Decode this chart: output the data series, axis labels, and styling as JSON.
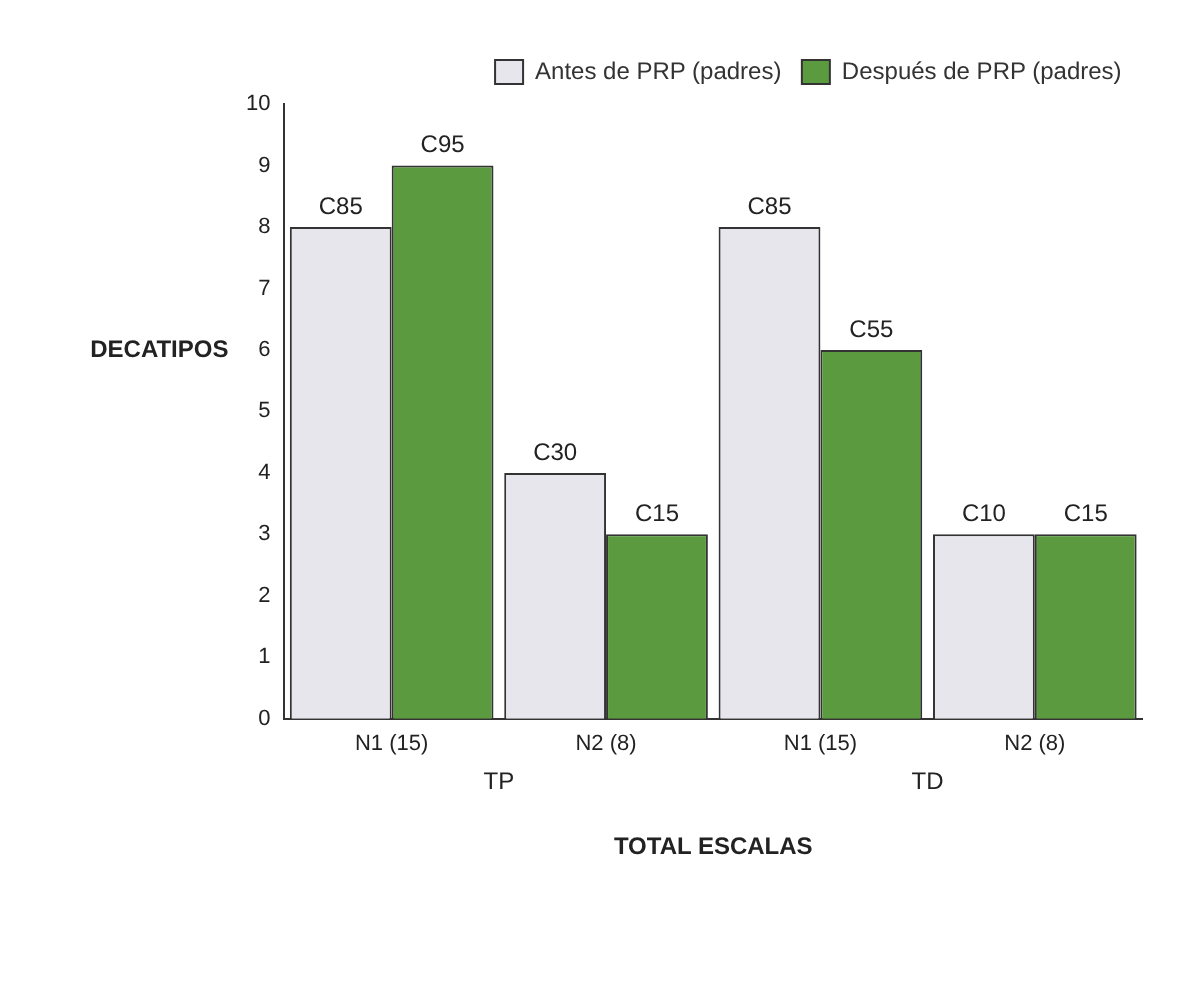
{
  "chart_data": {
    "type": "bar",
    "xlabel": "TOTAL ESCALAS",
    "ylabel": "DECATIPOS",
    "categories": [
      "N1 (15)",
      "N2 (8)",
      "N1 (15)",
      "N2 (8)"
    ],
    "series": [
      {
        "name": "Antes de PRP (padres)",
        "color": "#e6e6ec",
        "values": [
          8,
          4,
          8,
          3
        ],
        "value_labels": [
          "C85",
          "C30",
          "C85",
          "C10"
        ]
      },
      {
        "name": "Después de PRP (padres)",
        "color": "#5b9a3e",
        "values": [
          9,
          3,
          6,
          3
        ],
        "value_labels": [
          "C95",
          "C15",
          "C55",
          "C15"
        ]
      }
    ],
    "annotations": [
      "TP",
      "TD"
    ],
    "ylim": [
      0,
      10
    ],
    "yticks": [
      0,
      1,
      2,
      3,
      4,
      5,
      6,
      7,
      8,
      9,
      10
    ],
    "grid": false,
    "legend": "top right"
  }
}
